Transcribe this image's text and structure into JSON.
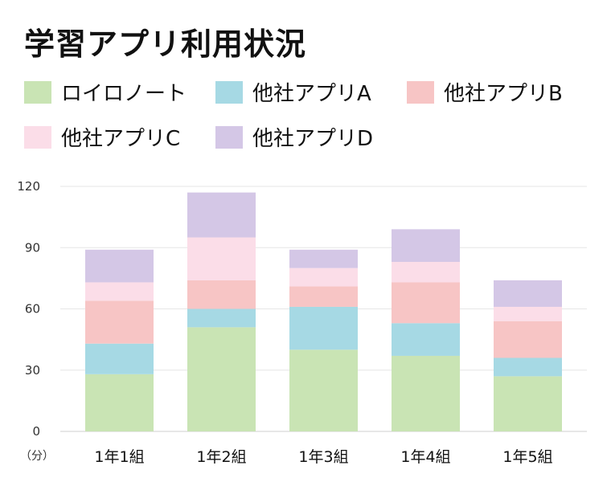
{
  "title": "学習アプリ利用状況",
  "legend": [
    {
      "label": "ロイロノート",
      "color": "#c9e4b4"
    },
    {
      "label": "他社アプリA",
      "color": "#a6d9e4"
    },
    {
      "label": "他社アプリB",
      "color": "#f7c5c5"
    },
    {
      "label": "他社アプリC",
      "color": "#fbdde8"
    },
    {
      "label": "他社アプリD",
      "color": "#d4c7e6"
    }
  ],
  "chart_data": {
    "type": "bar",
    "stacked": true,
    "categories": [
      "1年1組",
      "1年2組",
      "1年3組",
      "1年4組",
      "1年5組"
    ],
    "series": [
      {
        "name": "ロイロノート",
        "color": "#c9e4b4",
        "values": [
          28,
          51,
          40,
          37,
          27
        ]
      },
      {
        "name": "他社アプリA",
        "color": "#a6d9e4",
        "values": [
          15,
          9,
          21,
          16,
          9
        ]
      },
      {
        "name": "他社アプリB",
        "color": "#f7c5c5",
        "values": [
          21,
          14,
          10,
          20,
          18
        ]
      },
      {
        "name": "他社アプリC",
        "color": "#fbdde8",
        "values": [
          9,
          21,
          9,
          10,
          7
        ]
      },
      {
        "name": "他社アプリD",
        "color": "#d4c7e6",
        "values": [
          16,
          22,
          9,
          16,
          13
        ]
      }
    ],
    "ylim": [
      0,
      120
    ],
    "yticks": [
      0,
      30,
      60,
      90,
      120
    ],
    "unit_label": "（分）",
    "grid": true
  }
}
